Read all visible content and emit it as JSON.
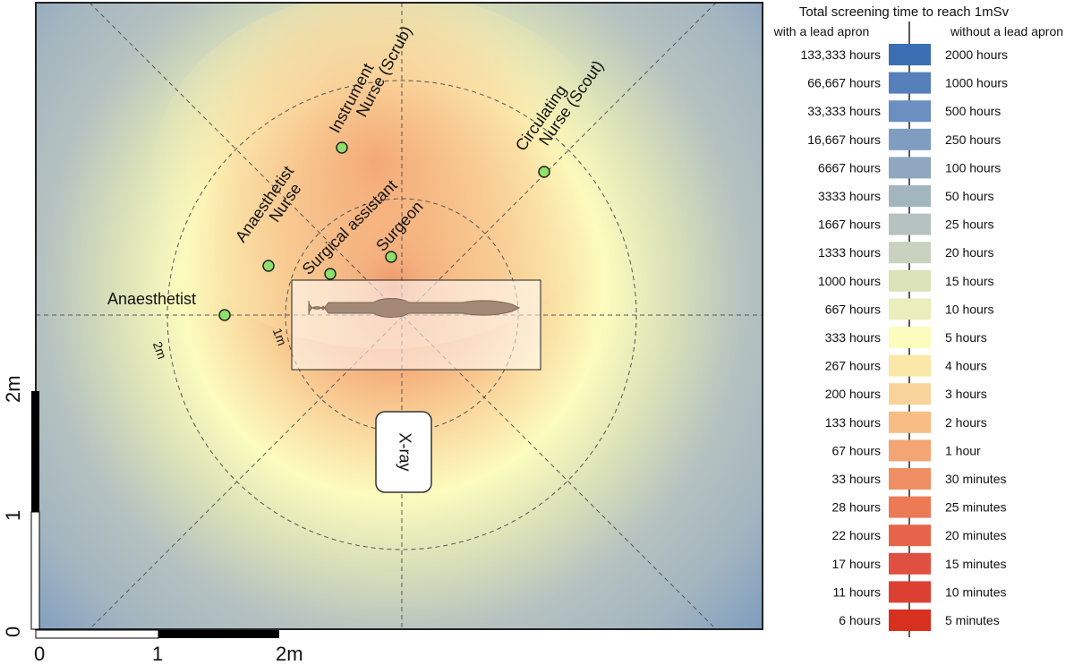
{
  "legend": {
    "title": "Total screening time to reach 1mSv",
    "headers": [
      "with a lead apron",
      "without a lead apron"
    ],
    "rows": [
      {
        "with": "133,333 hours",
        "without": "2000 hours",
        "color": "#3b6fb3"
      },
      {
        "with": "66,667 hours",
        "without": "1000 hours",
        "color": "#5580bb"
      },
      {
        "with": "33,333 hours",
        "without": "500 hours",
        "color": "#6b8fc0"
      },
      {
        "with": "16,667 hours",
        "without": "250 hours",
        "color": "#7f9dc1"
      },
      {
        "with": "6667 hours",
        "without": "100 hours",
        "color": "#8fa8bf"
      },
      {
        "with": "3333 hours",
        "without": "50 hours",
        "color": "#a3b5bf"
      },
      {
        "with": "1667 hours",
        "without": "25 hours",
        "color": "#b5c2c0"
      },
      {
        "with": "1333 hours",
        "without": "20 hours",
        "color": "#c8d2be"
      },
      {
        "with": "1000 hours",
        "without": "15 hours",
        "color": "#dbe2b8"
      },
      {
        "with": "667 hours",
        "without": "10 hours",
        "color": "#ebedbc"
      },
      {
        "with": "333 hours",
        "without": "5 hours",
        "color": "#fcfcbe"
      },
      {
        "with": "267 hours",
        "without": "4 hours",
        "color": "#fbe8a8"
      },
      {
        "with": "200 hours",
        "without": "3 hours",
        "color": "#f9d49a"
      },
      {
        "with": "133 hours",
        "without": "2 hours",
        "color": "#f7bd85"
      },
      {
        "with": "67 hours",
        "without": "1 hour",
        "color": "#f4a574"
      },
      {
        "with": "33 hours",
        "without": "30 minutes",
        "color": "#f08f63"
      },
      {
        "with": "28 hours",
        "without": "25 minutes",
        "color": "#eb7a55"
      },
      {
        "with": "22 hours",
        "without": "20 minutes",
        "color": "#e6654a"
      },
      {
        "with": "17 hours",
        "without": "15 minutes",
        "color": "#e05040"
      },
      {
        "with": "11 hours",
        "without": "10 minutes",
        "color": "#dc4033"
      },
      {
        "with": "6 hours",
        "without": "5 minutes",
        "color": "#d7301f"
      }
    ]
  },
  "nodes": [
    {
      "lines": [
        "Instrument",
        "Nurse (Scrub)"
      ]
    },
    {
      "lines": [
        "Circulating",
        "Nurse (Scout)"
      ]
    },
    {
      "lines": [
        "Anaesthetist",
        "Nurse"
      ]
    },
    {
      "lines": [
        "Surgical assistant"
      ]
    },
    {
      "lines": [
        "Surgeon"
      ]
    },
    {
      "lines": [
        "Anaesthetist"
      ]
    }
  ],
  "rings": [
    "1m",
    "2m"
  ],
  "xray": "X-ray",
  "scale": {
    "x": [
      "0",
      "1",
      "2m"
    ],
    "y": [
      "0",
      "1",
      "2m"
    ]
  }
}
